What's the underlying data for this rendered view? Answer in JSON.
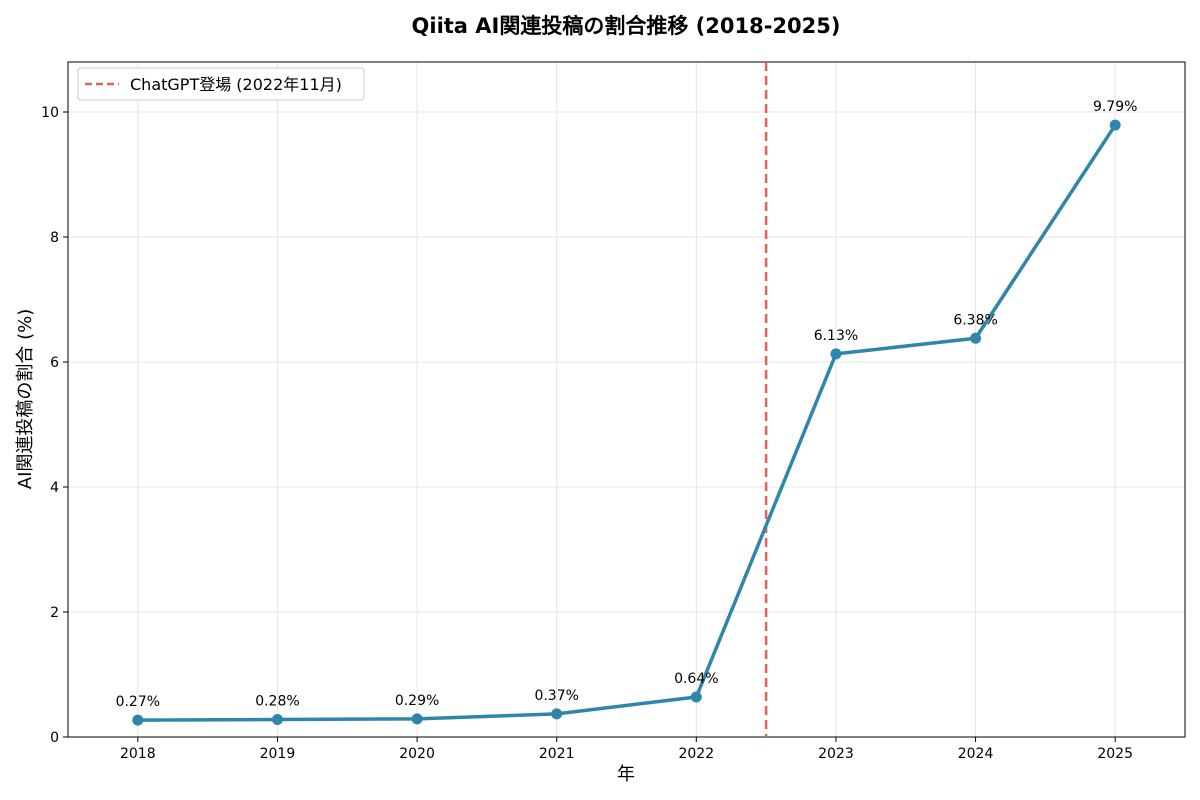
{
  "chart_data": {
    "type": "line",
    "title": "Qiita AI関連投稿の割合推移 (2018-2025)",
    "xlabel": "年",
    "ylabel": "AI関連投稿の割合 (%)",
    "x": [
      "2018",
      "2019",
      "2020",
      "2021",
      "2022",
      "2023",
      "2024",
      "2025"
    ],
    "series": [
      {
        "values": [
          0.27,
          0.28,
          0.29,
          0.37,
          0.64,
          6.13,
          6.38,
          9.79
        ],
        "labels": [
          "0.27%",
          "0.28%",
          "0.29%",
          "0.37%",
          "0.64%",
          "6.13%",
          "6.38%",
          "9.79%"
        ],
        "color": "#2e86ab"
      }
    ],
    "yticks": [
      "0",
      "2",
      "4",
      "6",
      "8",
      "10"
    ],
    "ylim": [
      0,
      10.8
    ],
    "xlim": [
      2017.5,
      2025.5
    ],
    "annotation": {
      "x": 2022.5,
      "label": "ChatGPT登場 (2022年11月)",
      "color": "#e8625a",
      "style": "dashed"
    },
    "grid": true,
    "legend_position": "top-left"
  }
}
